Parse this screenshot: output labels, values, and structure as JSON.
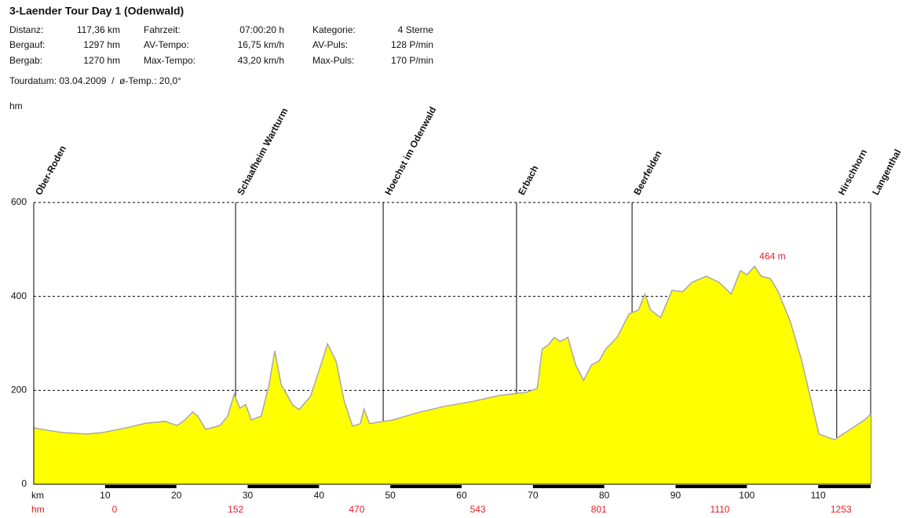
{
  "header": {
    "title": "3-Laender Tour Day 1 (Odenwald)",
    "stats": [
      [
        [
          "Distanz:",
          "117,36 km"
        ],
        [
          "Fahrzeit:",
          "07:00:20 h"
        ],
        [
          "Kategorie:",
          "4 Sterne"
        ]
      ],
      [
        [
          "Bergauf:",
          "1297 hm"
        ],
        [
          "AV-Tempo:",
          "16,75 km/h"
        ],
        [
          "AV-Puls:",
          "128 P/min"
        ]
      ],
      [
        [
          "Bergab:",
          "1270 hm"
        ],
        [
          "Max-Tempo:",
          "43,20 km/h"
        ],
        [
          "Max-Puls:",
          "170 P/min"
        ]
      ]
    ],
    "tourdate": "Tourdatum: 03.04.2009  /  ø-Temp.: 20,0°"
  },
  "chart_data": {
    "type": "area",
    "y_label": "hm",
    "x_label": "km",
    "x": [
      0,
      1.9,
      4.1,
      7.4,
      9.6,
      12.9,
      15.7,
      18.4,
      20.1,
      21.2,
      22.3,
      23,
      24.1,
      26.1,
      27.2,
      28.1,
      28.9,
      29.7,
      30.5,
      31.9,
      33,
      33.8,
      34.7,
      36.3,
      37.2,
      38.8,
      39.9,
      41.2,
      42.4,
      43.5,
      44.7,
      45.8,
      46.3,
      47.1,
      48.2,
      50.4,
      53.7,
      57.6,
      61.4,
      65.3,
      69.1,
      70.6,
      71.3,
      72.1,
      73,
      73.8,
      74.9,
      76,
      77.1,
      78.2,
      79.3,
      80.2,
      81.8,
      83.5,
      84.8,
      85.7,
      86.5,
      87.9,
      89.5,
      91,
      92.3,
      94.3,
      96.1,
      97.8,
      99.1,
      100,
      101.1,
      102,
      103.3,
      104.4,
      106.1,
      107.7,
      109,
      110.1,
      112.3,
      114.3,
      116.5,
      117.36
    ],
    "values": [
      120,
      115,
      110,
      107,
      110,
      120,
      130,
      134,
      125,
      137,
      154,
      145,
      117,
      125,
      145,
      192,
      162,
      170,
      137,
      145,
      212,
      284,
      212,
      169,
      159,
      187,
      237,
      299,
      262,
      179,
      124,
      129,
      160,
      129,
      132,
      137,
      152,
      166,
      176,
      189,
      196,
      204,
      288,
      296,
      313,
      304,
      313,
      254,
      221,
      254,
      263,
      288,
      313,
      363,
      371,
      405,
      371,
      355,
      413,
      410,
      430,
      443,
      430,
      405,
      455,
      446,
      464,
      443,
      438,
      410,
      346,
      263,
      179,
      107,
      95,
      115,
      137,
      149
    ],
    "color": "#ffff00",
    "line_color": "#a8a8a8",
    "xlim": [
      0,
      117.36
    ],
    "ylim": [
      0,
      600
    ],
    "yticks": [
      0,
      200,
      400,
      600
    ],
    "xticks": [
      10,
      20,
      30,
      40,
      50,
      60,
      70,
      80,
      90,
      100,
      110
    ],
    "grid": true,
    "waypoints": [
      {
        "name": "Ober-Roden",
        "km": 0
      },
      {
        "name": "Schaafheim Wartturm",
        "km": 28.3
      },
      {
        "name": "Hoechst im Odenwald",
        "km": 49
      },
      {
        "name": "Erbach",
        "km": 67.7
      },
      {
        "name": "Beerfelden",
        "km": 83.9
      },
      {
        "name": "Hirschhorn",
        "km": 112.6
      },
      {
        "name": "Langenthal",
        "km": 117.36
      }
    ],
    "max": {
      "x": 101.1,
      "value": 464,
      "label": "464 m"
    },
    "ascent_label": "hm",
    "ascent_values": [
      0,
      152,
      470,
      543,
      801,
      1110,
      1253
    ]
  }
}
